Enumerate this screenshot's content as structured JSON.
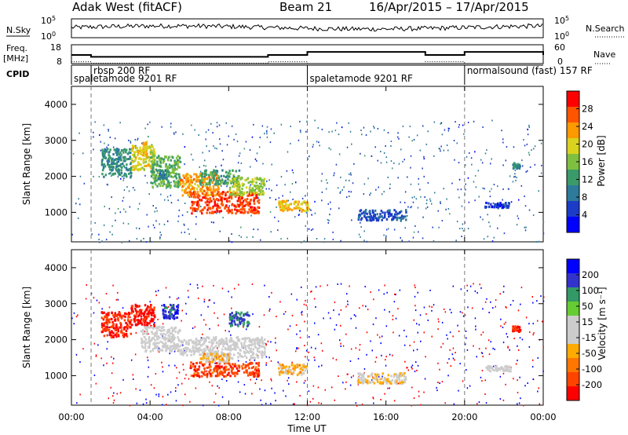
{
  "header": {
    "station": "Adak West (fitACF)",
    "beam": "Beam 21",
    "date_range": "16/Apr/2015 – 17/Apr/2015"
  },
  "sky_panel": {
    "left_label": "N.Sky",
    "right_label": "N.Search",
    "left_ticks": [
      "10^5",
      "10^0"
    ],
    "right_ticks": [
      "10^5",
      "10^0"
    ]
  },
  "freq_panel": {
    "left_label": "Freq.",
    "left_unit": "[MHz]",
    "right_label": "Nave",
    "left_ticks": [
      "18",
      "8"
    ],
    "right_ticks": [
      "60",
      "0"
    ],
    "freq_levels": [
      0.46,
      0.36,
      0.46,
      0.62,
      0.46,
      0.62,
      0.46
    ],
    "nave_levels": [
      0.1,
      0.02,
      0.1,
      0.0,
      0.1,
      0.0,
      0.1
    ]
  },
  "cpid": {
    "label": "CPID",
    "modes": [
      {
        "label": "spaletamode 9201 RF",
        "start_hour": 0.0
      },
      {
        "label": "rbsp 200 RF",
        "start_hour": 1.0
      },
      {
        "label": "spaletamode 9201 RF",
        "start_hour": 12.0
      },
      {
        "label": "normalsound (fast) 157 RF",
        "start_hour": 20.0
      }
    ]
  },
  "colors": {
    "power_scale": [
      "#0000ff",
      "#1c3cc8",
      "#2d7a9a",
      "#3a9a6a",
      "#7fbf3f",
      "#d9d21e",
      "#ff9900",
      "#ff5500",
      "#ff0000"
    ],
    "velocity_scale": [
      "#ff0000",
      "#ff4400",
      "#ff7700",
      "#ffaa00",
      "#cccccc",
      "#cccccc",
      "#66cc33",
      "#339966",
      "#3333cc",
      "#0000ff"
    ]
  },
  "chart_data": [
    {
      "type": "heatmap",
      "name": "Power",
      "xlabel": "Time UT",
      "ylabel": "Slant Range [km]",
      "x_ticks": [
        "00:00",
        "04:00",
        "08:00",
        "12:00",
        "16:00",
        "20:00",
        "00:00"
      ],
      "y_ticks": [
        "1000",
        "2000",
        "3000",
        "4000"
      ],
      "xlim_hours": [
        0,
        24
      ],
      "ylim_km": [
        180,
        4500
      ],
      "colorbar_label": "Power [dB]",
      "colorbar_ticks": [
        "4",
        "8",
        "12",
        "16",
        "20",
        "24",
        "28"
      ],
      "colorbar_range": [
        0,
        30
      ],
      "regions": [
        {
          "t0": 1.5,
          "t1": 3.0,
          "r0": 2000,
          "r1": 2800,
          "value": 10
        },
        {
          "t0": 3.0,
          "t1": 4.2,
          "r0": 2200,
          "r1": 2900,
          "value": 18
        },
        {
          "t0": 4.0,
          "t1": 5.5,
          "r0": 1700,
          "r1": 2600,
          "value": 14
        },
        {
          "t0": 5.5,
          "t1": 7.5,
          "r0": 1500,
          "r1": 2100,
          "value": 22
        },
        {
          "t0": 6.0,
          "t1": 9.5,
          "r0": 1000,
          "r1": 1600,
          "value": 26
        },
        {
          "t0": 6.5,
          "t1": 8.5,
          "r0": 1800,
          "r1": 2200,
          "value": 12
        },
        {
          "t0": 8.0,
          "t1": 9.8,
          "r0": 1500,
          "r1": 2000,
          "value": 16
        },
        {
          "t0": 10.5,
          "t1": 12.0,
          "r0": 1050,
          "r1": 1350,
          "value": 20
        },
        {
          "t0": 14.5,
          "t1": 17.0,
          "r0": 800,
          "r1": 1100,
          "value": 6
        },
        {
          "t0": 21.0,
          "t1": 22.3,
          "r0": 1150,
          "r1": 1300,
          "value": 5
        },
        {
          "t0": 22.4,
          "t1": 22.8,
          "r0": 2250,
          "r1": 2400,
          "value": 11
        },
        {
          "t0": 3.6,
          "t1": 3.8,
          "r0": 2600,
          "r1": 3000,
          "value": 20
        },
        {
          "t0": 4.3,
          "t1": 4.9,
          "r0": 1950,
          "r1": 2200,
          "value": 9
        }
      ]
    },
    {
      "type": "heatmap",
      "name": "Velocity",
      "xlabel": "Time UT",
      "ylabel": "Slant Range [km]",
      "x_ticks": [
        "00:00",
        "04:00",
        "08:00",
        "12:00",
        "16:00",
        "20:00",
        "00:00"
      ],
      "y_ticks": [
        "1000",
        "2000",
        "3000",
        "4000"
      ],
      "xlim_hours": [
        0,
        24
      ],
      "ylim_km": [
        180,
        4500
      ],
      "colorbar_label": "Velocity [m s⁻¹]",
      "colorbar_ticks": [
        "200",
        "100",
        "50",
        "15",
        "-15",
        "-50",
        "-100",
        "-200"
      ],
      "colorbar_range": [
        -250,
        250
      ],
      "regions": [
        {
          "t0": 1.5,
          "t1": 3.0,
          "r0": 2100,
          "r1": 2800,
          "value": -200
        },
        {
          "t0": 3.0,
          "t1": 4.2,
          "r0": 2400,
          "r1": 3000,
          "value": -220
        },
        {
          "t0": 3.5,
          "t1": 5.5,
          "r0": 1700,
          "r1": 2400,
          "value": 0
        },
        {
          "t0": 5.5,
          "t1": 8.0,
          "r0": 1600,
          "r1": 2100,
          "value": 5
        },
        {
          "t0": 6.0,
          "t1": 9.5,
          "r0": 1000,
          "r1": 1400,
          "value": -180
        },
        {
          "t0": 6.5,
          "t1": 8.0,
          "r0": 1400,
          "r1": 1650,
          "value": -60
        },
        {
          "t0": 8.0,
          "t1": 9.8,
          "r0": 1500,
          "r1": 2100,
          "value": 0
        },
        {
          "t0": 8.0,
          "t1": 9.0,
          "r0": 2400,
          "r1": 2800,
          "value": 150
        },
        {
          "t0": 10.5,
          "t1": 12.0,
          "r0": 1050,
          "r1": 1350,
          "value": -70
        },
        {
          "t0": 14.5,
          "t1": 17.0,
          "r0": 800,
          "r1": 1100,
          "value": -40
        },
        {
          "t0": 21.0,
          "t1": 22.3,
          "r0": 1150,
          "r1": 1300,
          "value": 0
        },
        {
          "t0": 22.4,
          "t1": 22.8,
          "r0": 2250,
          "r1": 2400,
          "value": -200
        },
        {
          "t0": 4.6,
          "t1": 5.4,
          "r0": 2600,
          "r1": 3000,
          "value": 180
        }
      ]
    }
  ]
}
